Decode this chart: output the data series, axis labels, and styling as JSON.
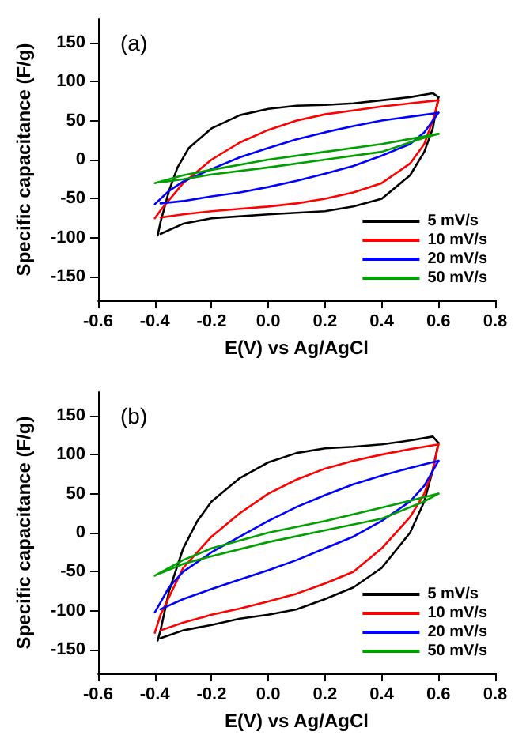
{
  "chart_data": [
    {
      "type": "line",
      "xlabel": "E(V) vs Ag/AgCl",
      "ylabel": "Specific capacitance (F/g)",
      "annotations": [
        "(a)"
      ],
      "xlim": [
        -0.6,
        0.8
      ],
      "xticks": [
        -0.6,
        -0.4,
        -0.2,
        {
          "value": 0,
          "label": "0.0"
        },
        0.2,
        0.4,
        0.6,
        0.8
      ],
      "ylim": [
        -180,
        180
      ],
      "yticks": [
        -150,
        -100,
        -50,
        0,
        50,
        100,
        150
      ],
      "grid": false,
      "legend": "bottom right",
      "marker": "none",
      "line_style": "solid",
      "series": [
        {
          "name": "5 mV/s",
          "color": "#000000",
          "x": [
            -0.39,
            -0.38,
            -0.35,
            -0.32,
            -0.28,
            -0.2,
            -0.1,
            0,
            0.1,
            0.2,
            0.3,
            0.4,
            0.5,
            0.58,
            0.6
          ],
          "values": [
            -97,
            -80,
            -40,
            -10,
            15,
            40,
            57,
            65,
            69,
            70,
            72,
            76,
            80,
            85,
            80
          ]
        },
        {
          "color": "#000000",
          "x": [
            0.6,
            0.58,
            0.55,
            0.5,
            0.4,
            0.3,
            0.2,
            0,
            -0.2,
            -0.3,
            -0.38
          ],
          "values": [
            80,
            40,
            10,
            -20,
            -50,
            -60,
            -66,
            -70,
            -75,
            -82,
            -95
          ]
        },
        {
          "name": "10 mV/s",
          "color": "#ff0000",
          "x": [
            -0.4,
            -0.38,
            -0.3,
            -0.2,
            -0.1,
            0,
            0.1,
            0.2,
            0.3,
            0.4,
            0.5,
            0.6
          ],
          "values": [
            -75,
            -65,
            -30,
            0,
            22,
            38,
            50,
            58,
            63,
            68,
            72,
            76
          ]
        },
        {
          "color": "#ff0000",
          "x": [
            0.6,
            0.58,
            0.55,
            0.5,
            0.4,
            0.3,
            0.2,
            0.1,
            0,
            -0.1,
            -0.2,
            -0.3,
            -0.38
          ],
          "values": [
            76,
            50,
            20,
            -5,
            -30,
            -42,
            -50,
            -56,
            -60,
            -63,
            -66,
            -70,
            -74
          ]
        },
        {
          "name": "20 mV/s",
          "color": "#0000ff",
          "x": [
            -0.4,
            -0.35,
            -0.3,
            -0.2,
            -0.1,
            0,
            0.1,
            0.2,
            0.3,
            0.4,
            0.5,
            0.6
          ],
          "values": [
            -57,
            -40,
            -28,
            -12,
            3,
            15,
            26,
            35,
            43,
            50,
            55,
            60
          ]
        },
        {
          "color": "#0000ff",
          "x": [
            0.6,
            0.55,
            0.5,
            0.4,
            0.3,
            0.2,
            0.1,
            0,
            -0.1,
            -0.2,
            -0.3,
            -0.38
          ],
          "values": [
            60,
            35,
            20,
            5,
            -8,
            -18,
            -27,
            -35,
            -42,
            -47,
            -53,
            -56
          ]
        },
        {
          "name": "50 mV/s",
          "color": "#00a000",
          "x": [
            -0.4,
            -0.3,
            -0.2,
            0,
            0.2,
            0.4,
            0.6
          ],
          "values": [
            -30,
            -20,
            -13,
            0,
            10,
            20,
            33
          ]
        },
        {
          "color": "#00a000",
          "x": [
            0.6,
            0.55,
            0.4,
            0.2,
            0,
            -0.2,
            -0.3,
            -0.38
          ],
          "values": [
            33,
            28,
            10,
            0,
            -10,
            -19,
            -25,
            -29
          ]
        }
      ]
    },
    {
      "type": "line",
      "xlabel": "E(V) vs Ag/AgCl",
      "ylabel": "Specific capacitance (F/g)",
      "annotations": [
        "(b)"
      ],
      "xlim": [
        -0.6,
        0.8
      ],
      "xticks": [
        -0.6,
        -0.4,
        -0.2,
        {
          "value": 0,
          "label": "0.0"
        },
        0.2,
        0.4,
        0.6,
        0.8
      ],
      "ylim": [
        -180,
        180
      ],
      "yticks": [
        -150,
        -100,
        -50,
        0,
        50,
        100,
        150
      ],
      "grid": false,
      "legend": "bottom right",
      "marker": "none",
      "line_style": "solid",
      "series": [
        {
          "name": "5 mV/s",
          "color": "#000000",
          "x": [
            -0.39,
            -0.38,
            -0.35,
            -0.3,
            -0.25,
            -0.2,
            -0.1,
            0,
            0.1,
            0.2,
            0.3,
            0.4,
            0.5,
            0.58,
            0.6
          ],
          "values": [
            -138,
            -125,
            -75,
            -20,
            15,
            40,
            70,
            90,
            102,
            108,
            110,
            113,
            118,
            123,
            115
          ]
        },
        {
          "color": "#000000",
          "x": [
            0.6,
            0.58,
            0.55,
            0.5,
            0.4,
            0.3,
            0.2,
            0.1,
            0,
            -0.1,
            -0.2,
            -0.3,
            -0.38
          ],
          "values": [
            115,
            80,
            40,
            0,
            -45,
            -70,
            -85,
            -98,
            -105,
            -110,
            -118,
            -125,
            -135
          ]
        },
        {
          "name": "10 mV/s",
          "color": "#ff0000",
          "x": [
            -0.4,
            -0.38,
            -0.3,
            -0.2,
            -0.1,
            0,
            0.1,
            0.2,
            0.3,
            0.4,
            0.5,
            0.6
          ],
          "values": [
            -128,
            -105,
            -45,
            -5,
            25,
            50,
            68,
            82,
            92,
            100,
            107,
            113
          ]
        },
        {
          "color": "#ff0000",
          "x": [
            0.6,
            0.58,
            0.55,
            0.5,
            0.4,
            0.3,
            0.2,
            0.1,
            0,
            -0.1,
            -0.2,
            -0.3,
            -0.38
          ],
          "values": [
            113,
            80,
            50,
            20,
            -20,
            -50,
            -65,
            -78,
            -88,
            -97,
            -105,
            -115,
            -125
          ]
        },
        {
          "name": "20 mV/s",
          "color": "#0000ff",
          "x": [
            -0.4,
            -0.35,
            -0.3,
            -0.2,
            -0.1,
            0,
            0.1,
            0.2,
            0.3,
            0.4,
            0.5,
            0.6
          ],
          "values": [
            -102,
            -70,
            -50,
            -25,
            -5,
            15,
            33,
            48,
            62,
            73,
            83,
            92
          ]
        },
        {
          "color": "#0000ff",
          "x": [
            0.6,
            0.55,
            0.5,
            0.4,
            0.3,
            0.2,
            0.1,
            0,
            -0.1,
            -0.2,
            -0.3,
            -0.38
          ],
          "values": [
            92,
            60,
            40,
            15,
            -5,
            -20,
            -35,
            -48,
            -60,
            -72,
            -85,
            -98
          ]
        },
        {
          "name": "50 mV/s",
          "color": "#00a000",
          "x": [
            -0.4,
            -0.3,
            -0.2,
            0,
            0.2,
            0.4,
            0.6
          ],
          "values": [
            -55,
            -35,
            -20,
            0,
            15,
            32,
            50
          ]
        },
        {
          "color": "#00a000",
          "x": [
            0.6,
            0.55,
            0.4,
            0.2,
            0,
            -0.2,
            -0.3,
            -0.38
          ],
          "values": [
            50,
            40,
            18,
            3,
            -12,
            -30,
            -40,
            -52
          ]
        }
      ]
    }
  ]
}
